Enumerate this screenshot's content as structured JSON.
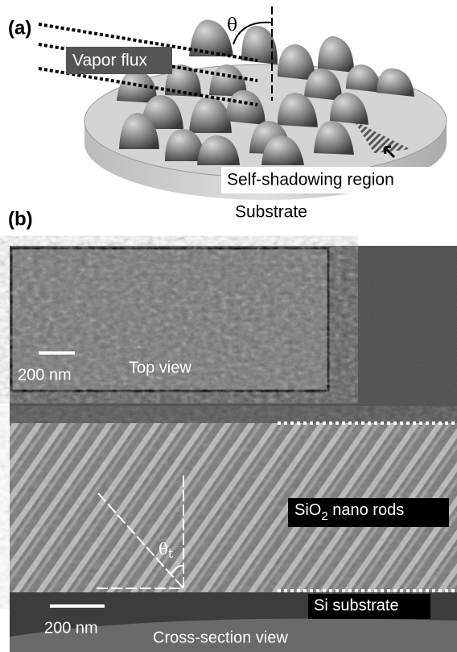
{
  "panel_a": {
    "label": "(a)",
    "angle": "θ",
    "flux": "Vapor flux",
    "shadow": "Self-shadowing region",
    "substrate": "Substrate"
  },
  "panel_b": {
    "label": "(b)",
    "inset": {
      "scale": "200 nm",
      "caption": "Top view"
    },
    "cross": {
      "rods_pre": "SiO",
      "rods_sub": "2",
      "rods_post": " nano rods",
      "angle": "θ",
      "angle_sub": "t",
      "si": "Si substrate",
      "scale": "200 nm",
      "caption": "Cross-section view"
    }
  }
}
